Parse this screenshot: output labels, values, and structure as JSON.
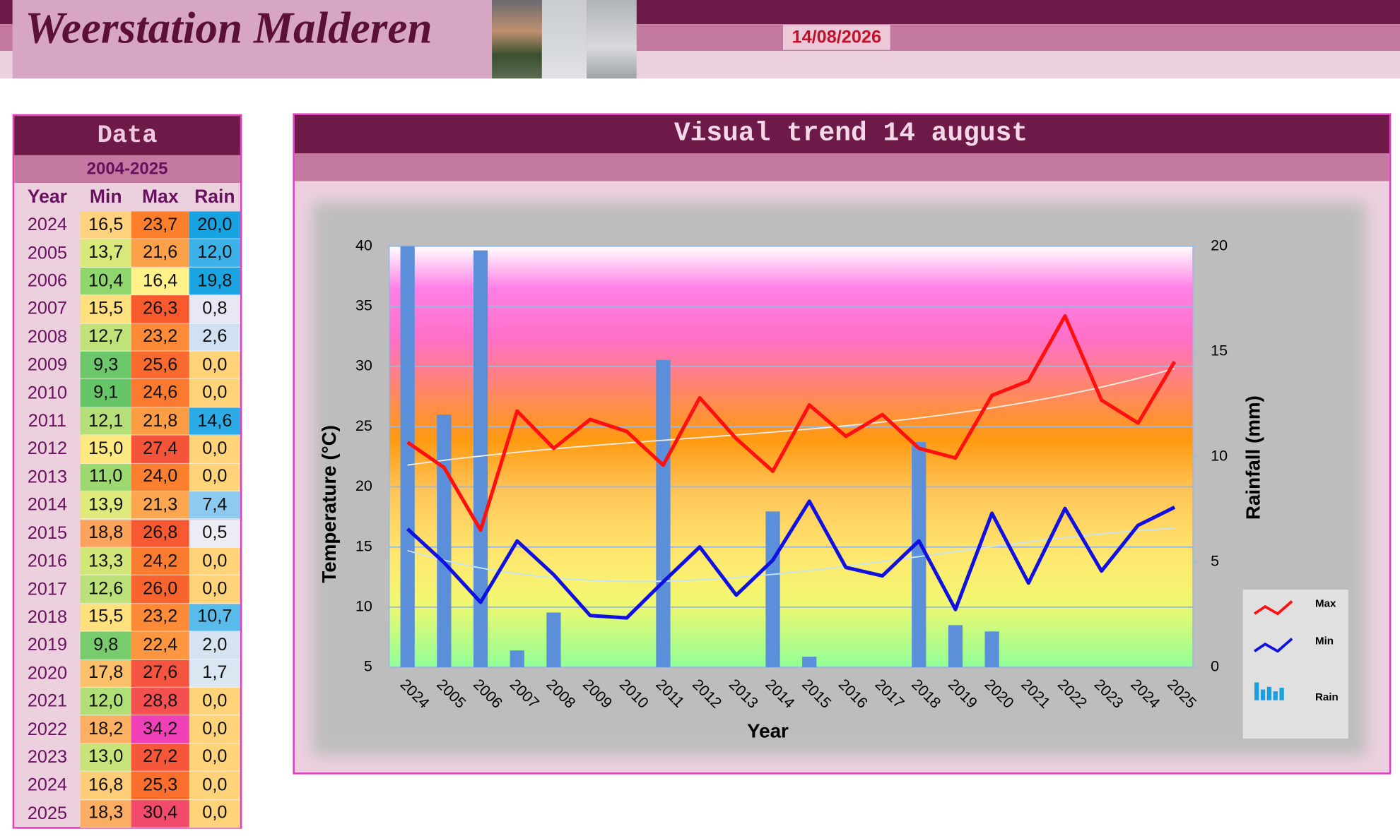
{
  "header": {
    "title": "Weerstation Malderen",
    "date": "14/08/2026"
  },
  "table": {
    "title": "Data",
    "subtitle": "2004-2025",
    "columns": [
      "Year",
      "Min",
      "Max",
      "Rain"
    ],
    "rows": [
      [
        "2024",
        "16,5",
        "23,7",
        "20,0"
      ],
      [
        "2005",
        "13,7",
        "21,6",
        "12,0"
      ],
      [
        "2006",
        "10,4",
        "16,4",
        "19,8"
      ],
      [
        "2007",
        "15,5",
        "26,3",
        "0,8"
      ],
      [
        "2008",
        "12,7",
        "23,2",
        "2,6"
      ],
      [
        "2009",
        "9,3",
        "25,6",
        "0,0"
      ],
      [
        "2010",
        "9,1",
        "24,6",
        "0,0"
      ],
      [
        "2011",
        "12,1",
        "21,8",
        "14,6"
      ],
      [
        "2012",
        "15,0",
        "27,4",
        "0,0"
      ],
      [
        "2013",
        "11,0",
        "24,0",
        "0,0"
      ],
      [
        "2014",
        "13,9",
        "21,3",
        "7,4"
      ],
      [
        "2015",
        "18,8",
        "26,8",
        "0,5"
      ],
      [
        "2016",
        "13,3",
        "24,2",
        "0,0"
      ],
      [
        "2017",
        "12,6",
        "26,0",
        "0,0"
      ],
      [
        "2018",
        "15,5",
        "23,2",
        "10,7"
      ],
      [
        "2019",
        "9,8",
        "22,4",
        "2,0"
      ],
      [
        "2020",
        "17,8",
        "27,6",
        "1,7"
      ],
      [
        "2021",
        "12,0",
        "28,8",
        "0,0"
      ],
      [
        "2022",
        "18,2",
        "34,2",
        "0,0"
      ],
      [
        "2023",
        "13,0",
        "27,2",
        "0,0"
      ],
      [
        "2024",
        "16,8",
        "25,3",
        "0,0"
      ],
      [
        "2025",
        "18,3",
        "30,4",
        "0,0"
      ]
    ],
    "cell_colors": [
      [
        "#ffd27f",
        "#fd7f2c",
        "#17a3e2"
      ],
      [
        "#d9e87a",
        "#fca14a",
        "#3db2e8"
      ],
      [
        "#8fd66e",
        "#fff08a",
        "#1aa4e2"
      ],
      [
        "#ffe07f",
        "#f85a2e",
        "#e8e8f4"
      ],
      [
        "#c0e27a",
        "#fd8a36",
        "#d0e2f2"
      ],
      [
        "#6cc86a",
        "#f96a2e",
        "#ffd37a"
      ],
      [
        "#66c566",
        "#fb7a2f",
        "#ffd37a"
      ],
      [
        "#b5df78",
        "#fc9c45",
        "#2dabe6"
      ],
      [
        "#fde881",
        "#f6543a",
        "#ffd37a"
      ],
      [
        "#9ed871",
        "#fc7e2f",
        "#ffd37a"
      ],
      [
        "#e0ea7c",
        "#fca650",
        "#8ccbef"
      ],
      [
        "#fba35c",
        "#f75a32",
        "#ececf4"
      ],
      [
        "#d2e67a",
        "#fb7c2f",
        "#ffd37a"
      ],
      [
        "#bde17a",
        "#f8632e",
        "#ffd37a"
      ],
      [
        "#ffe07f",
        "#fd8a36",
        "#58bbea"
      ],
      [
        "#78cc6b",
        "#fd963e",
        "#d6e4f2"
      ],
      [
        "#fcbf6a",
        "#f55440",
        "#dae6f2"
      ],
      [
        "#b2de77",
        "#f45050",
        "#ffd37a"
      ],
      [
        "#fbb064",
        "#f040b8",
        "#ffd37a"
      ],
      [
        "#c8e37a",
        "#f6563a",
        "#ffd37a"
      ],
      [
        "#fecd77",
        "#fa6e2e",
        "#ffd37a"
      ],
      [
        "#fbae63",
        "#f24a6a",
        "#ffd37a"
      ]
    ]
  },
  "chart_data": {
    "type": "line",
    "title": "Visual trend 14 august",
    "x_label": "Year",
    "y_label": "Temperature (°C)",
    "y2_label": "Rainfall (mm)",
    "categories": [
      "2024",
      "2005",
      "2006",
      "2007",
      "2008",
      "2009",
      "2010",
      "2011",
      "2012",
      "2013",
      "2014",
      "2015",
      "2016",
      "2017",
      "2018",
      "2019",
      "2020",
      "2021",
      "2022",
      "2023",
      "2024",
      "2025"
    ],
    "series": [
      {
        "name": "Max",
        "type": "line",
        "color": "#ff1010",
        "values": [
          23.7,
          21.6,
          16.4,
          26.3,
          23.2,
          25.6,
          24.6,
          21.8,
          27.4,
          24.0,
          21.3,
          26.8,
          24.2,
          26.0,
          23.2,
          22.4,
          27.6,
          28.8,
          34.2,
          27.2,
          25.3,
          30.4
        ]
      },
      {
        "name": "Min",
        "type": "line",
        "color": "#1010e0",
        "values": [
          16.5,
          13.7,
          10.4,
          15.5,
          12.7,
          9.3,
          9.1,
          12.1,
          15.0,
          11.0,
          13.9,
          18.8,
          13.3,
          12.6,
          15.5,
          9.8,
          17.8,
          12.0,
          18.2,
          13.0,
          16.8,
          18.3
        ]
      },
      {
        "name": "Rain",
        "type": "bar",
        "axis": "y2",
        "color": "#5b8fd9",
        "values": [
          20.0,
          12.0,
          19.8,
          0.8,
          2.6,
          0.0,
          0.0,
          14.6,
          0.0,
          0.0,
          7.4,
          0.5,
          0.0,
          0.0,
          10.7,
          2.0,
          1.7,
          0.0,
          0.0,
          0.0,
          0.0,
          0.0
        ]
      }
    ],
    "ylim": [
      5,
      40
    ],
    "yticks": [
      5,
      10,
      15,
      20,
      25,
      30,
      35,
      40
    ],
    "y2lim": [
      0,
      20
    ],
    "y2ticks": [
      0,
      5,
      10,
      15,
      20
    ],
    "grid": true,
    "legend": "right",
    "trendline": "polynomial"
  }
}
